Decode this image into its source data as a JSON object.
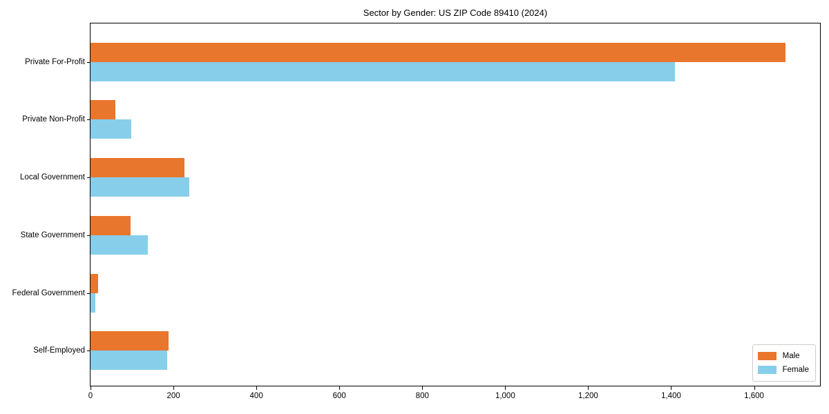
{
  "chart_data": {
    "type": "bar",
    "orientation": "horizontal",
    "title": "Sector by Gender: US ZIP Code 89410 (2024)",
    "categories": [
      "Private For-Profit",
      "Private Non-Profit",
      "Local Government",
      "State Government",
      "Federal Government",
      "Self-Employed"
    ],
    "series": [
      {
        "name": "Male",
        "color": "#E8762D",
        "values": [
          1675,
          60,
          226,
          97,
          19,
          188
        ]
      },
      {
        "name": "Female",
        "color": "#87CEEB",
        "values": [
          1410,
          98,
          239,
          139,
          11,
          185
        ]
      }
    ],
    "xlabel": "",
    "ylabel": "",
    "xlim": [
      0,
      1759
    ],
    "xticks": {
      "values": [
        0,
        200,
        400,
        600,
        800,
        1000,
        1200,
        1400,
        1600
      ],
      "labels": [
        "0",
        "200",
        "400",
        "600",
        "800",
        "1,000",
        "1,200",
        "1,400",
        "1,600"
      ]
    },
    "legend": {
      "position": "lower right"
    },
    "grid": false,
    "background": "#ffffff",
    "axis_color": "#000000"
  }
}
